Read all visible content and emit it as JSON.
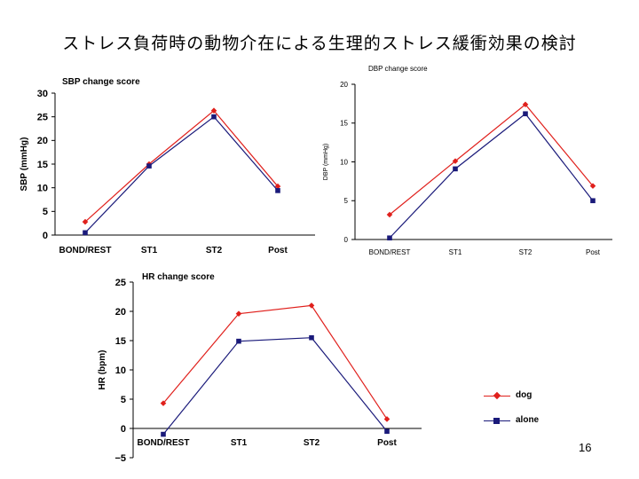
{
  "slide": {
    "title": "ストレス負荷時の動物介在による生理的ストレス緩衝効果の検討",
    "page_number": "16"
  },
  "colors": {
    "dog": "#e0201c",
    "alone": "#1a1a7a"
  },
  "legend": {
    "dog": "dog",
    "alone": "alone"
  },
  "chart_data": [
    {
      "id": "sbp",
      "type": "line",
      "title": "SBP change score",
      "ylabel": "SBP (mmHg)",
      "categories": [
        "BOND/REST",
        "ST1",
        "ST2",
        "Post"
      ],
      "ylim": [
        0,
        30
      ],
      "yticks": [
        0,
        5,
        10,
        15,
        20,
        25,
        30
      ],
      "series": [
        {
          "name": "dog",
          "values": [
            2.8,
            15.0,
            26.3,
            10.3
          ]
        },
        {
          "name": "alone",
          "values": [
            0.5,
            14.6,
            25.0,
            9.4
          ]
        }
      ]
    },
    {
      "id": "dbp",
      "type": "line",
      "title": "DBP change score",
      "ylabel": "DBP (mmHg)",
      "categories": [
        "BOND/REST",
        "ST1",
        "ST2",
        "Post"
      ],
      "ylim": [
        0,
        20
      ],
      "yticks": [
        0,
        5,
        10,
        15,
        20
      ],
      "series": [
        {
          "name": "dog",
          "values": [
            3.2,
            10.1,
            17.4,
            6.9
          ]
        },
        {
          "name": "alone",
          "values": [
            0.2,
            9.1,
            16.2,
            5.0
          ]
        }
      ]
    },
    {
      "id": "hr",
      "type": "line",
      "title": "HR change score",
      "ylabel": "HR (bpm)",
      "categories": [
        "BOND/REST",
        "ST1",
        "ST2",
        "Post"
      ],
      "ylim": [
        -5,
        25
      ],
      "yticks": [
        -5,
        0,
        5,
        10,
        15,
        20,
        25
      ],
      "series": [
        {
          "name": "dog",
          "values": [
            4.3,
            19.6,
            21.0,
            1.6
          ]
        },
        {
          "name": "alone",
          "values": [
            -1.0,
            14.9,
            15.5,
            -0.5
          ]
        }
      ]
    }
  ]
}
